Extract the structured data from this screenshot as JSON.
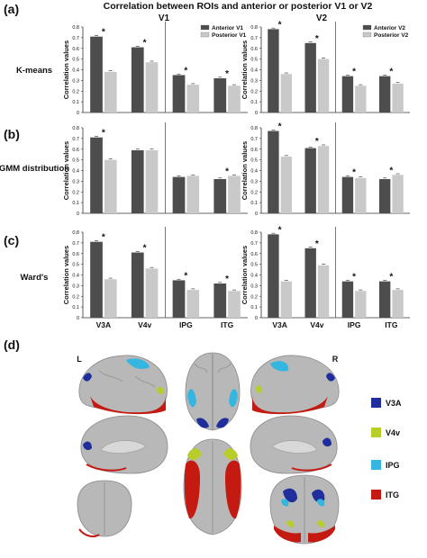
{
  "figure": {
    "panel_letters": [
      "(a)",
      "(b)",
      "(c)",
      "(d)"
    ],
    "title": "Correlation between ROIs and anterior or posterior V1 or V2",
    "column_labels": [
      "V1",
      "V2"
    ],
    "row_labels": [
      "K-means",
      "GMM distribution",
      "Ward's"
    ],
    "y_axis_label": "Correlation values",
    "hemisphere_labels": [
      "L",
      "R"
    ],
    "roi_legend": [
      {
        "label": "V3A",
        "color": "#1f2e9c"
      },
      {
        "label": "V4v",
        "color": "#b8cc2a"
      },
      {
        "label": "IPG",
        "color": "#35b6e0"
      },
      {
        "label": "ITG",
        "color": "#c41a12"
      }
    ]
  },
  "chart_data": {
    "type": "bar",
    "categories": [
      "V3A",
      "V4v",
      "IPG",
      "ITG"
    ],
    "ylim": [
      0,
      0.8
    ],
    "yticks": [
      "0",
      "0.1",
      "0.2",
      "0.3",
      "0.4",
      "0.5",
      "0.6",
      "0.7",
      "0.8"
    ],
    "grid": false,
    "legend_placement": "top-right",
    "colors": {
      "anterior": "#4d4d4d",
      "posterior": "#c9c9c9"
    },
    "panels": [
      {
        "row": "K-means",
        "column": "V1",
        "series": [
          {
            "name": "Anterior V1",
            "values": [
              0.71,
              0.61,
              0.35,
              0.32
            ]
          },
          {
            "name": "Posterior V1",
            "values": [
              0.38,
              0.47,
              0.26,
              0.25
            ]
          }
        ],
        "significant": [
          true,
          true,
          true,
          true
        ]
      },
      {
        "row": "K-means",
        "column": "V2",
        "series": [
          {
            "name": "Anterior V2",
            "values": [
              0.78,
              0.65,
              0.34,
              0.34
            ]
          },
          {
            "name": "Posterior V2",
            "values": [
              0.36,
              0.5,
              0.25,
              0.27
            ]
          }
        ],
        "significant": [
          true,
          true,
          true,
          true
        ]
      },
      {
        "row": "GMM distribution",
        "column": "V1",
        "series": [
          {
            "name": "Anterior V1",
            "values": [
              0.71,
              0.59,
              0.34,
              0.32
            ]
          },
          {
            "name": "Posterior V1",
            "values": [
              0.5,
              0.59,
              0.35,
              0.35
            ]
          }
        ],
        "significant": [
          true,
          false,
          false,
          true
        ]
      },
      {
        "row": "GMM distribution",
        "column": "V2",
        "series": [
          {
            "name": "Anterior V2",
            "values": [
              0.77,
              0.61,
              0.34,
              0.32
            ]
          },
          {
            "name": "Posterior V2",
            "values": [
              0.53,
              0.63,
              0.33,
              0.36
            ]
          }
        ],
        "significant": [
          true,
          true,
          true,
          true
        ]
      },
      {
        "row": "Ward's",
        "column": "V1",
        "series": [
          {
            "name": "Anterior V1",
            "values": [
              0.71,
              0.61,
              0.35,
              0.32
            ]
          },
          {
            "name": "Posterior V1",
            "values": [
              0.36,
              0.46,
              0.26,
              0.25
            ]
          }
        ],
        "significant": [
          true,
          true,
          true,
          true
        ]
      },
      {
        "row": "Ward's",
        "column": "V2",
        "series": [
          {
            "name": "Anterior V2",
            "values": [
              0.78,
              0.65,
              0.34,
              0.34
            ]
          },
          {
            "name": "Posterior V2",
            "values": [
              0.34,
              0.49,
              0.25,
              0.26
            ]
          }
        ],
        "significant": [
          true,
          true,
          true,
          true
        ]
      }
    ]
  }
}
